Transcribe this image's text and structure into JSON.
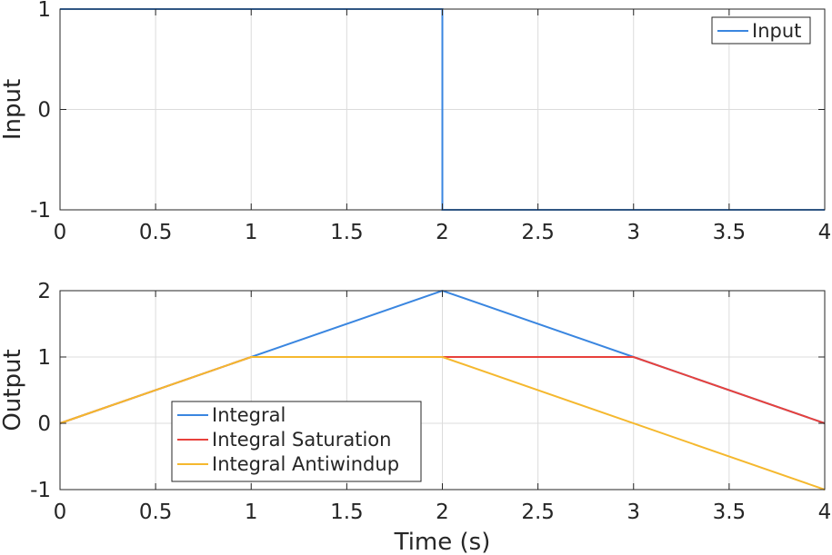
{
  "chart_data": [
    {
      "type": "line",
      "title": "",
      "xlabel": "",
      "ylabel": "Input",
      "xlim": [
        0,
        4
      ],
      "ylim": [
        -1,
        1
      ],
      "xticks": [
        0,
        0.5,
        1,
        1.5,
        2,
        2.5,
        3,
        3.5,
        4
      ],
      "xtick_labels": [
        "0",
        "0.5",
        "1",
        "1.5",
        "2",
        "2.5",
        "3",
        "3.5",
        "4"
      ],
      "yticks": [
        -1,
        0,
        1
      ],
      "ytick_labels": [
        "-1",
        "0",
        "1"
      ],
      "grid": true,
      "legend_position": "top-right",
      "series": [
        {
          "name": "Input",
          "color": "#3a86e0",
          "x": [
            0,
            2,
            2,
            4
          ],
          "y": [
            1,
            1,
            -1,
            -1
          ]
        }
      ]
    },
    {
      "type": "line",
      "title": "",
      "xlabel": "Time (s)",
      "ylabel": "Output",
      "xlim": [
        0,
        4
      ],
      "ylim": [
        -1,
        2
      ],
      "xticks": [
        0,
        0.5,
        1,
        1.5,
        2,
        2.5,
        3,
        3.5,
        4
      ],
      "xtick_labels": [
        "0",
        "0.5",
        "1",
        "1.5",
        "2",
        "2.5",
        "3",
        "3.5",
        "4"
      ],
      "yticks": [
        -1,
        0,
        1,
        2
      ],
      "ytick_labels": [
        "-1",
        "0",
        "1",
        "2"
      ],
      "grid": true,
      "legend_position": "bottom-left",
      "series": [
        {
          "name": "Integral",
          "color": "#3a86e0",
          "x": [
            0,
            2,
            3,
            4
          ],
          "y": [
            0,
            2,
            1,
            0
          ]
        },
        {
          "name": "Integral Saturation",
          "color": "#e8413c",
          "x": [
            0,
            1,
            2,
            3,
            4
          ],
          "y": [
            0,
            1,
            1,
            1,
            0
          ]
        },
        {
          "name": "Integral Antiwindup",
          "color": "#f5b82e",
          "x": [
            0,
            1,
            2,
            4
          ],
          "y": [
            0,
            1,
            1,
            -1
          ]
        }
      ]
    }
  ]
}
